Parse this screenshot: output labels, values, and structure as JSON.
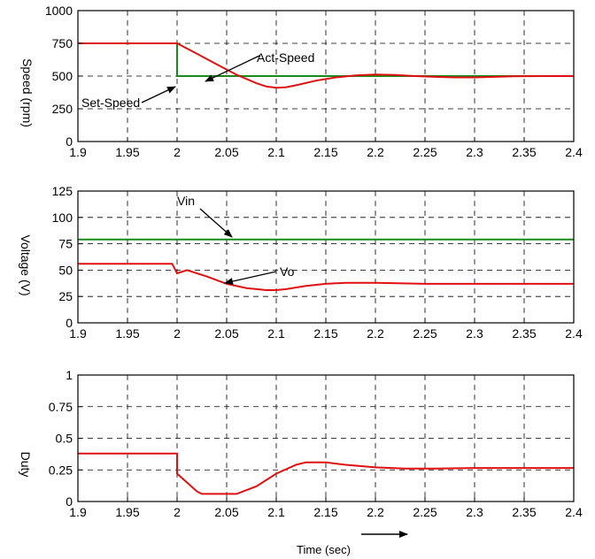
{
  "chart_data": [
    {
      "type": "line",
      "ylabel": "Speed (rpm)",
      "xlim": [
        1.9,
        2.4
      ],
      "ylim": [
        0,
        1000
      ],
      "x_ticks": [
        "1.9",
        "1.95",
        "2",
        "2.05",
        "2.1",
        "2.15",
        "2.2",
        "2.25",
        "2.3",
        "2.35",
        "2.4"
      ],
      "y_ticks": [
        "0",
        "250",
        "500",
        "750",
        "1000"
      ],
      "grid": true,
      "series": [
        {
          "name": "Set-Speed",
          "color": "#1a8a1a",
          "x": [
            1.9,
            2.0,
            2.0,
            2.4
          ],
          "y": [
            750,
            750,
            500,
            500
          ]
        },
        {
          "name": "Act-Speed",
          "color": "#e01010",
          "x": [
            1.9,
            2.0,
            2.02,
            2.04,
            2.06,
            2.08,
            2.09,
            2.1,
            2.11,
            2.12,
            2.14,
            2.16,
            2.18,
            2.2,
            2.22,
            2.24,
            2.26,
            2.28,
            2.3,
            2.32,
            2.34,
            2.37,
            2.4
          ],
          "y": [
            750,
            750,
            670,
            590,
            510,
            445,
            420,
            410,
            415,
            430,
            465,
            490,
            505,
            512,
            508,
            500,
            494,
            490,
            490,
            494,
            498,
            500,
            500
          ]
        }
      ],
      "annotations": [
        "Act-Speed",
        "Set-Speed"
      ]
    },
    {
      "type": "line",
      "ylabel": "Voltage (V)",
      "xlim": [
        1.9,
        2.4
      ],
      "ylim": [
        0,
        125
      ],
      "x_ticks": [
        "1.9",
        "1.95",
        "2",
        "2.05",
        "2.1",
        "2.15",
        "2.2",
        "2.25",
        "2.3",
        "2.35",
        "2.4"
      ],
      "y_ticks": [
        "0",
        "25",
        "50",
        "75",
        "100",
        "125"
      ],
      "grid": true,
      "series": [
        {
          "name": "Vin",
          "color": "#1a8a1a",
          "x": [
            1.9,
            2.4
          ],
          "y": [
            79,
            79
          ]
        },
        {
          "name": "Vo",
          "color": "#e01010",
          "x": [
            1.9,
            1.95,
            1.995,
            2.0,
            2.01,
            2.03,
            2.05,
            2.07,
            2.09,
            2.1,
            2.11,
            2.13,
            2.15,
            2.17,
            2.2,
            2.25,
            2.3,
            2.35,
            2.4
          ],
          "y": [
            56,
            56,
            56,
            47,
            50,
            44,
            37,
            33,
            31,
            31,
            32,
            35,
            37,
            38,
            38,
            37,
            37,
            37,
            37
          ]
        }
      ],
      "annotations": [
        "Vin",
        "Vo"
      ]
    },
    {
      "type": "line",
      "ylabel": "Duty",
      "xlim": [
        1.9,
        2.4
      ],
      "ylim": [
        0,
        1
      ],
      "x_ticks": [
        "1.9",
        "1.95",
        "2",
        "2.05",
        "2.1",
        "2.15",
        "2.2",
        "2.25",
        "2.3",
        "2.35",
        "2.4"
      ],
      "y_ticks": [
        "0",
        "0.25",
        "0.5",
        "0.75",
        "1"
      ],
      "grid": true,
      "xlabel": "Time (sec)",
      "series": [
        {
          "name": "Duty",
          "color": "#e01010",
          "x": [
            1.9,
            2.0,
            2.0,
            2.01,
            2.02,
            2.025,
            2.06,
            2.08,
            2.1,
            2.12,
            2.13,
            2.15,
            2.17,
            2.2,
            2.23,
            2.26,
            2.3,
            2.35,
            2.4
          ],
          "y": [
            0.38,
            0.38,
            0.22,
            0.15,
            0.08,
            0.06,
            0.06,
            0.12,
            0.22,
            0.29,
            0.31,
            0.31,
            0.29,
            0.27,
            0.26,
            0.26,
            0.265,
            0.265,
            0.265
          ]
        }
      ]
    }
  ],
  "labels": {
    "act_speed": "Act-Speed",
    "set_speed": "Set-Speed",
    "vin": "Vin",
    "vo": "Vo",
    "xlabel": "Time (sec)",
    "ylabel1": "Speed (rpm)",
    "ylabel2": "Voltage (V)",
    "ylabel3": "Duty"
  },
  "colors": {
    "green": "#1a8a1a",
    "red": "#e01010",
    "grid": "#000000"
  }
}
